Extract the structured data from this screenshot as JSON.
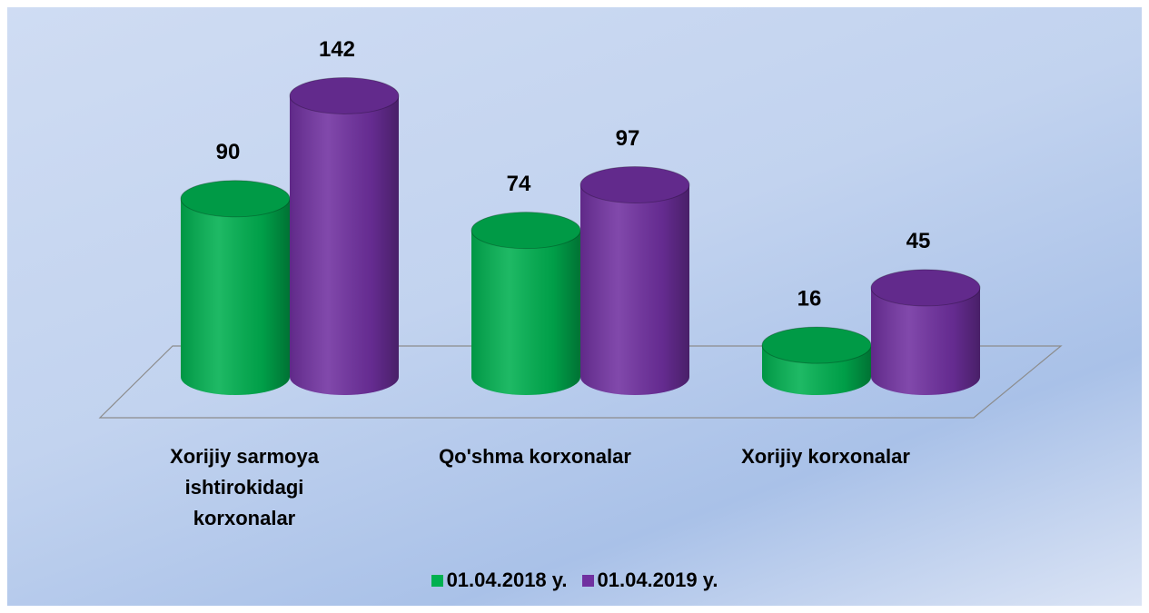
{
  "chart_data": {
    "type": "bar",
    "categories": [
      "Xorijiy sarmoya ishtirokidagi korxonalar",
      "Qo'shma korxonalar",
      "Xorijiy korxonalar"
    ],
    "series": [
      {
        "name": "01.04.2018 y.",
        "color": "#00b050",
        "values": [
          90,
          74,
          16
        ]
      },
      {
        "name": "01.04.2019 y.",
        "color": "#7030a0",
        "values": [
          142,
          97,
          45
        ]
      }
    ]
  }
}
